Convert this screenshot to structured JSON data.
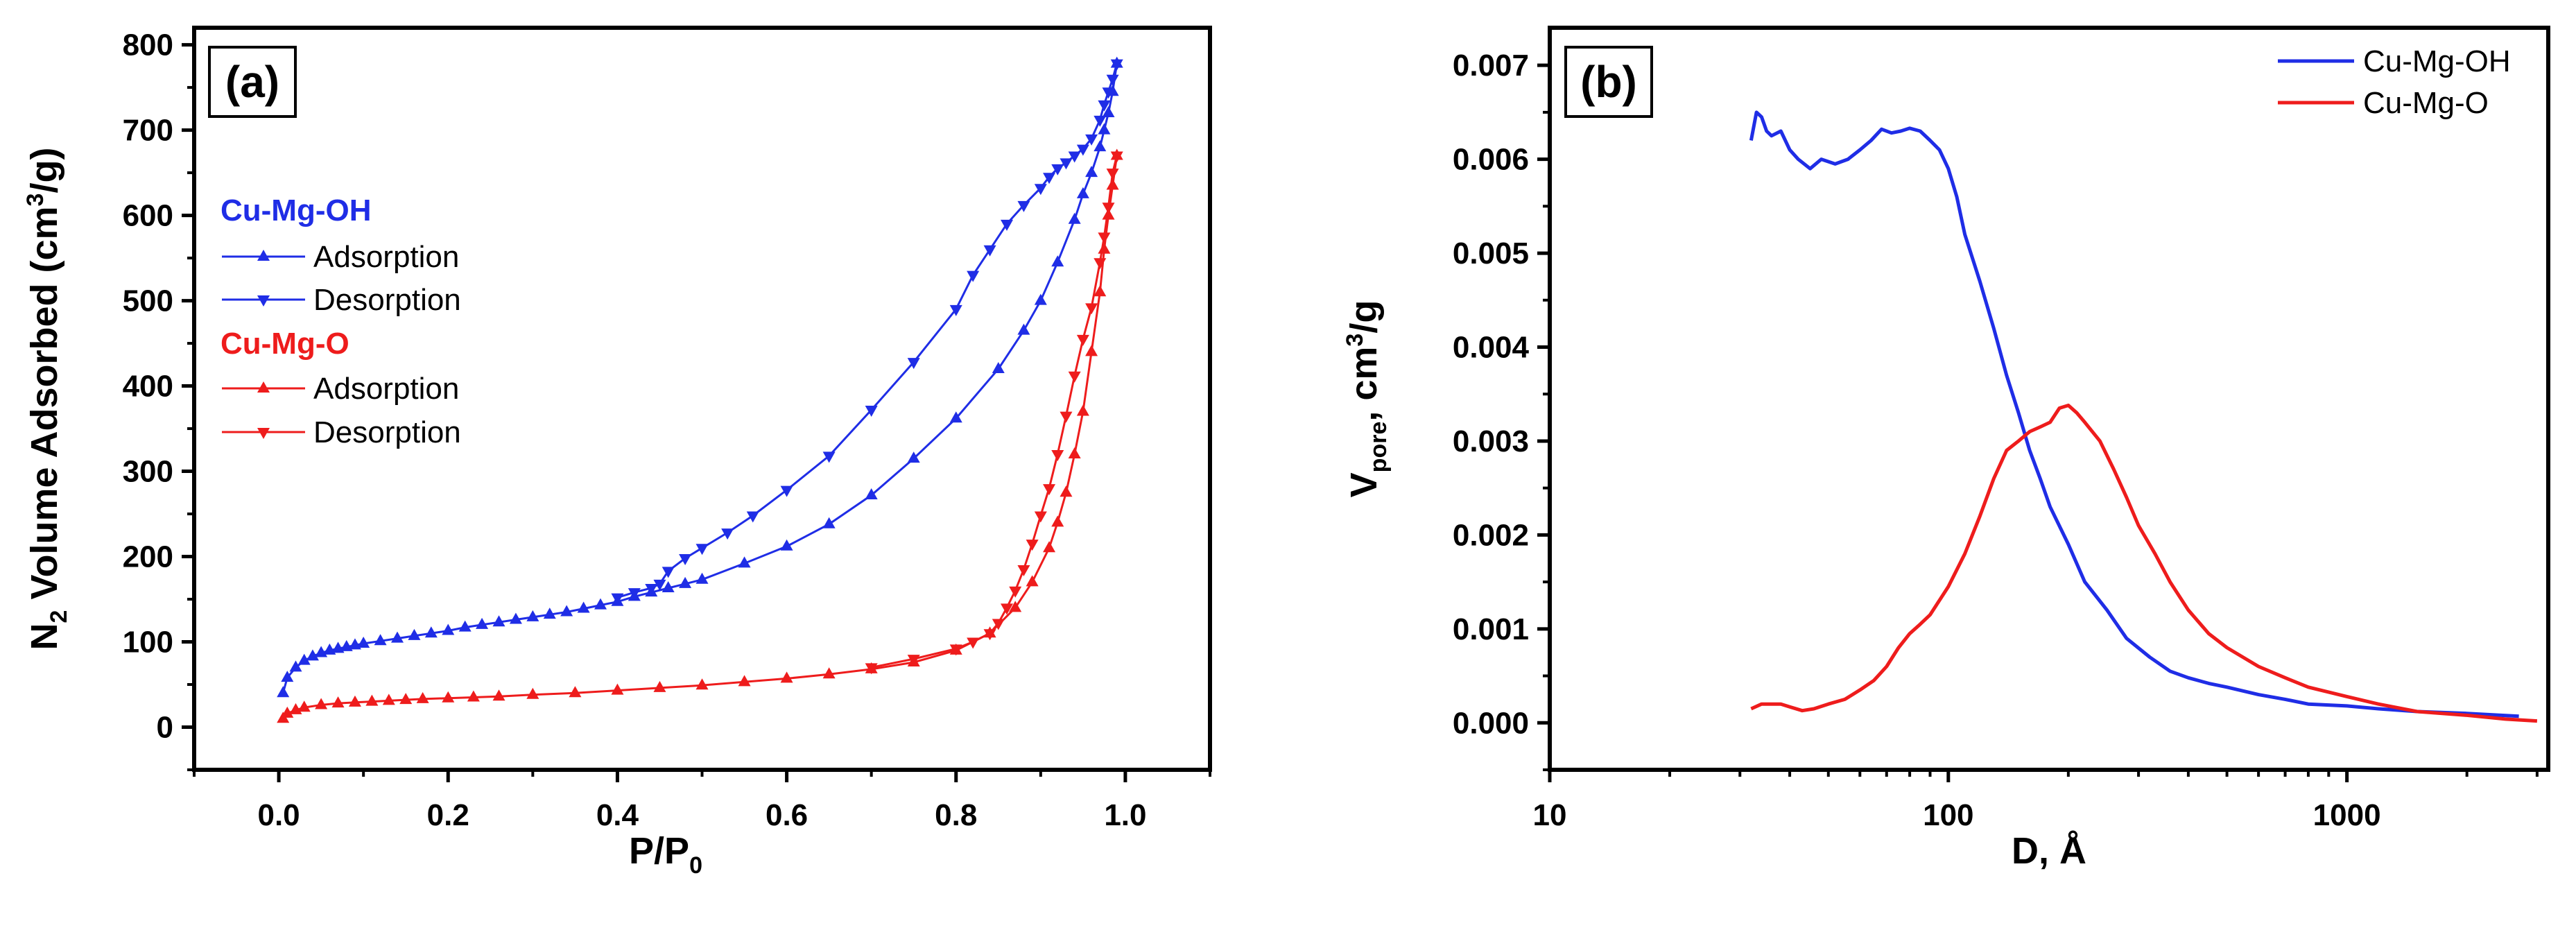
{
  "chart_data": [
    {
      "type": "line",
      "panel_label": "(a)",
      "xlabel": "P/P",
      "xlabel_sub": "0",
      "ylabel_pre": "N",
      "ylabel_sub": "2",
      "ylabel_mid": " Volume Adsorbed (cm",
      "ylabel_sup": "3",
      "ylabel_post": "/g)",
      "xlim": [
        -0.1,
        1.1
      ],
      "ylim": [
        -50,
        820
      ],
      "xticks": [
        "0.0",
        "0.2",
        "0.4",
        "0.6",
        "0.8",
        "1.0"
      ],
      "xtick_values": [
        0.0,
        0.2,
        0.4,
        0.6,
        0.8,
        1.0
      ],
      "yticks": [
        "0",
        "100",
        "200",
        "300",
        "400",
        "500",
        "600",
        "700",
        "800"
      ],
      "ytick_values": [
        0,
        100,
        200,
        300,
        400,
        500,
        600,
        700,
        800
      ],
      "legend": {
        "groups": [
          {
            "header": "Cu-Mg-OH",
            "color": "#1f2de6",
            "items": [
              "Adsorption",
              "Desorption"
            ]
          },
          {
            "header": "Cu-Mg-O",
            "color": "#ee1c1c",
            "items": [
              "Adsorption",
              "Desorption"
            ]
          }
        ]
      },
      "series": [
        {
          "name": "Cu-Mg-OH Adsorption",
          "color": "#1f2de6",
          "marker": "triangle-up",
          "x": [
            0.005,
            0.01,
            0.02,
            0.03,
            0.04,
            0.05,
            0.06,
            0.07,
            0.08,
            0.09,
            0.1,
            0.12,
            0.14,
            0.16,
            0.18,
            0.2,
            0.22,
            0.24,
            0.26,
            0.28,
            0.3,
            0.32,
            0.34,
            0.36,
            0.38,
            0.4,
            0.42,
            0.44,
            0.46,
            0.48,
            0.5,
            0.55,
            0.6,
            0.65,
            0.7,
            0.75,
            0.8,
            0.85,
            0.88,
            0.9,
            0.92,
            0.94,
            0.95,
            0.96,
            0.97,
            0.975,
            0.98,
            0.985,
            0.99
          ],
          "y": [
            40,
            58,
            70,
            78,
            83,
            87,
            90,
            92,
            94,
            96,
            98,
            101,
            104,
            107,
            110,
            113,
            117,
            120,
            123,
            126,
            129,
            132,
            135,
            139,
            143,
            147,
            153,
            158,
            163,
            168,
            173,
            192,
            212,
            238,
            272,
            315,
            362,
            420,
            465,
            500,
            545,
            595,
            625,
            650,
            680,
            700,
            720,
            745,
            778
          ]
        },
        {
          "name": "Cu-Mg-OH Desorption",
          "color": "#1f2de6",
          "marker": "triangle-down",
          "x": [
            0.99,
            0.985,
            0.98,
            0.975,
            0.97,
            0.96,
            0.95,
            0.94,
            0.93,
            0.92,
            0.91,
            0.9,
            0.88,
            0.86,
            0.84,
            0.82,
            0.8,
            0.75,
            0.7,
            0.65,
            0.6,
            0.56,
            0.53,
            0.5,
            0.48,
            0.46,
            0.45,
            0.44,
            0.42,
            0.4
          ],
          "y": [
            778,
            760,
            745,
            730,
            712,
            690,
            678,
            670,
            662,
            655,
            645,
            632,
            612,
            590,
            560,
            530,
            490,
            428,
            372,
            318,
            278,
            248,
            228,
            210,
            198,
            183,
            168,
            163,
            158,
            152
          ]
        },
        {
          "name": "Cu-Mg-O Adsorption",
          "color": "#ee1c1c",
          "marker": "triangle-up",
          "x": [
            0.005,
            0.01,
            0.02,
            0.03,
            0.05,
            0.07,
            0.09,
            0.11,
            0.13,
            0.15,
            0.17,
            0.2,
            0.23,
            0.26,
            0.3,
            0.35,
            0.4,
            0.45,
            0.5,
            0.55,
            0.6,
            0.65,
            0.7,
            0.75,
            0.8,
            0.84,
            0.87,
            0.89,
            0.91,
            0.92,
            0.93,
            0.94,
            0.95,
            0.96,
            0.97,
            0.975,
            0.98,
            0.985,
            0.99
          ],
          "y": [
            10,
            16,
            20,
            23,
            26,
            28,
            29,
            30,
            31,
            32,
            33,
            34,
            35,
            36,
            38,
            40,
            43,
            46,
            49,
            53,
            57,
            62,
            68,
            76,
            90,
            110,
            140,
            170,
            210,
            240,
            275,
            320,
            370,
            440,
            510,
            560,
            600,
            635,
            670
          ]
        },
        {
          "name": "Cu-Mg-O Desorption",
          "color": "#ee1c1c",
          "marker": "triangle-down",
          "x": [
            0.99,
            0.985,
            0.98,
            0.975,
            0.97,
            0.96,
            0.95,
            0.94,
            0.93,
            0.92,
            0.91,
            0.9,
            0.89,
            0.88,
            0.87,
            0.86,
            0.85,
            0.84,
            0.82,
            0.8,
            0.75,
            0.7
          ],
          "y": [
            670,
            650,
            610,
            575,
            545,
            492,
            455,
            412,
            365,
            320,
            280,
            248,
            215,
            185,
            160,
            140,
            122,
            110,
            100,
            92,
            80,
            70
          ]
        }
      ]
    },
    {
      "type": "line",
      "panel_label": "(b)",
      "xlabel": "D, Å",
      "xscale": "log",
      "ylabel_pre": "V",
      "ylabel_sub": "pore",
      "ylabel_mid": ", cm",
      "ylabel_sup": "3",
      "ylabel_post": "/g",
      "xlim": [
        10,
        3200
      ],
      "ylim": [
        -0.0005,
        0.0074
      ],
      "xticks": [
        "10",
        "100",
        "1000"
      ],
      "xtick_values": [
        10,
        100,
        1000
      ],
      "yticks": [
        "0.000",
        "0.001",
        "0.002",
        "0.003",
        "0.004",
        "0.005",
        "0.006",
        "0.007"
      ],
      "ytick_values": [
        0,
        0.001,
        0.002,
        0.003,
        0.004,
        0.005,
        0.006,
        0.007
      ],
      "legend": {
        "position": "top-right",
        "items": [
          {
            "name": "Cu-Mg-OH",
            "color": "#1f2de6"
          },
          {
            "name": "Cu-Mg-O",
            "color": "#ee1c1c"
          }
        ]
      },
      "series": [
        {
          "name": "Cu-Mg-OH",
          "color": "#1f2de6",
          "x": [
            32,
            33,
            34,
            35,
            36,
            38,
            40,
            42,
            45,
            48,
            52,
            56,
            60,
            64,
            68,
            72,
            76,
            80,
            85,
            90,
            95,
            100,
            105,
            110,
            120,
            130,
            140,
            150,
            160,
            170,
            180,
            200,
            220,
            250,
            280,
            320,
            360,
            400,
            450,
            500,
            600,
            700,
            800,
            1000,
            1200,
            1500,
            2000,
            2700
          ],
          "y": [
            0.0062,
            0.0065,
            0.00645,
            0.0063,
            0.00625,
            0.0063,
            0.0061,
            0.006,
            0.0059,
            0.006,
            0.00595,
            0.006,
            0.0061,
            0.0062,
            0.00632,
            0.00628,
            0.0063,
            0.00633,
            0.0063,
            0.0062,
            0.0061,
            0.0059,
            0.0056,
            0.0052,
            0.0047,
            0.0042,
            0.0037,
            0.0033,
            0.0029,
            0.0026,
            0.0023,
            0.0019,
            0.0015,
            0.0012,
            0.0009,
            0.0007,
            0.00055,
            0.00048,
            0.00042,
            0.00038,
            0.0003,
            0.00025,
            0.0002,
            0.00018,
            0.00015,
            0.00012,
            0.0001,
            7e-05
          ]
        },
        {
          "name": "Cu-Mg-O",
          "color": "#ee1c1c",
          "x": [
            32,
            34,
            36,
            38,
            40,
            43,
            46,
            50,
            55,
            60,
            65,
            70,
            75,
            80,
            85,
            90,
            100,
            110,
            120,
            130,
            140,
            150,
            160,
            170,
            180,
            190,
            200,
            210,
            220,
            240,
            260,
            280,
            300,
            330,
            360,
            400,
            450,
            500,
            600,
            700,
            800,
            1000,
            1200,
            1500,
            2000,
            2500,
            3000
          ],
          "y": [
            0.00015,
            0.0002,
            0.0002,
            0.0002,
            0.00017,
            0.00013,
            0.00015,
            0.0002,
            0.00025,
            0.00035,
            0.00045,
            0.0006,
            0.0008,
            0.00095,
            0.00105,
            0.00115,
            0.00145,
            0.0018,
            0.0022,
            0.0026,
            0.0029,
            0.003,
            0.0031,
            0.00315,
            0.0032,
            0.00335,
            0.00338,
            0.0033,
            0.0032,
            0.003,
            0.0027,
            0.0024,
            0.0021,
            0.0018,
            0.0015,
            0.0012,
            0.00095,
            0.0008,
            0.0006,
            0.00048,
            0.00038,
            0.00028,
            0.0002,
            0.00012,
            8e-05,
            4e-05,
            2e-05
          ]
        }
      ]
    }
  ]
}
